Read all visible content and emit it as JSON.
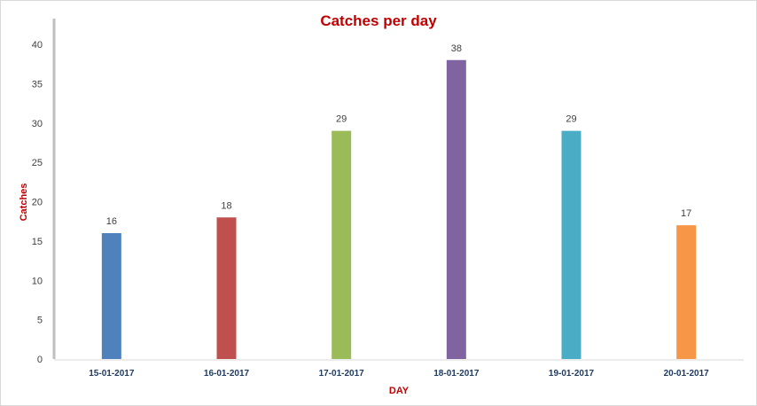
{
  "chart_data": {
    "type": "bar",
    "title": "Catches per day",
    "xlabel": "DAY",
    "ylabel": "Catches",
    "categories": [
      "15-01-2017",
      "16-01-2017",
      "17-01-2017",
      "18-01-2017",
      "19-01-2017",
      "20-01-2017"
    ],
    "values": [
      16,
      18,
      29,
      38,
      29,
      17
    ],
    "ylim": [
      0,
      40
    ],
    "yticks": [
      0,
      5,
      10,
      15,
      20,
      25,
      30,
      35,
      40
    ],
    "grid": false,
    "legend": "none",
    "data_labels": true,
    "colors": [
      "#4f81bd",
      "#c0504d",
      "#9bbb59",
      "#8064a2",
      "#4bacc6",
      "#f79646"
    ],
    "title_color": "#c00000",
    "axis_title_color": "#c00000"
  }
}
